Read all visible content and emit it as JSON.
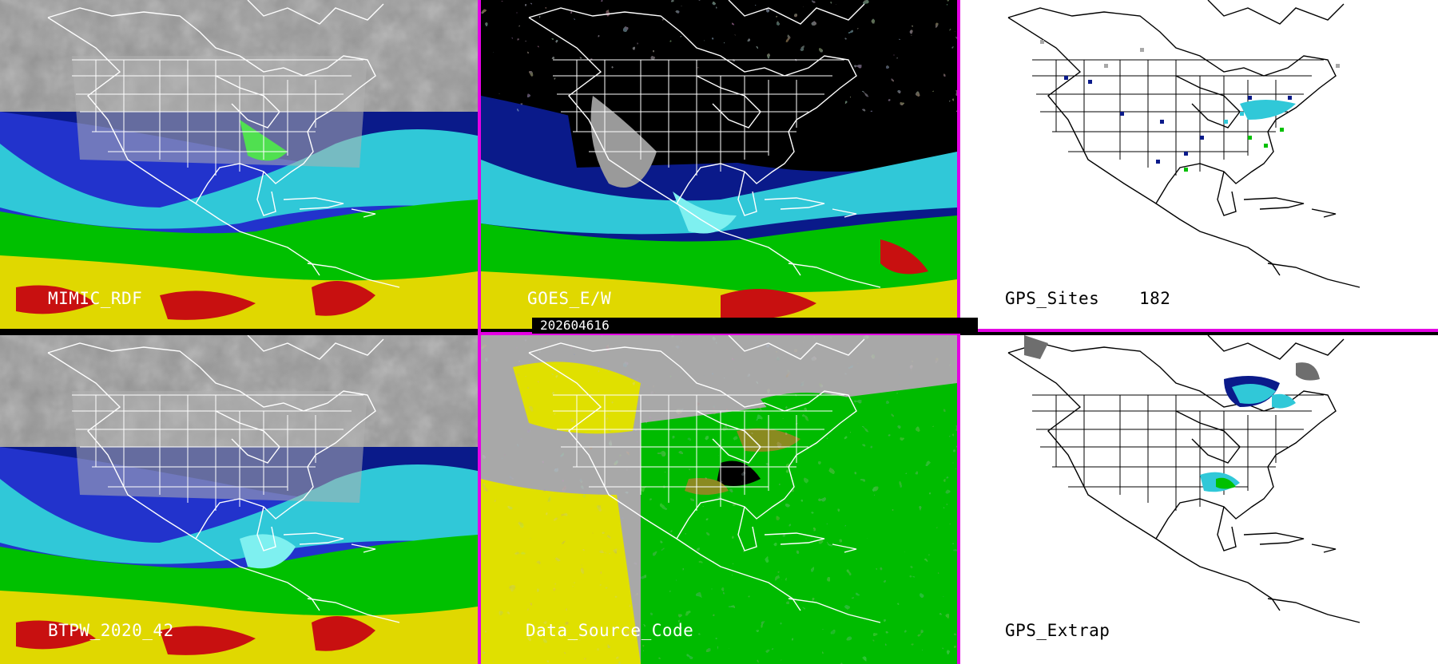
{
  "colors": {
    "divider": "#e400e4",
    "tpw_scale": [
      "#6e6e6e",
      "#c8c8c8",
      "#0a1a8a",
      "#2233cc",
      "#30c8d8",
      "#7ef0f0",
      "#00c000",
      "#50e050",
      "#e0d800",
      "#f0f000",
      "#c81010",
      "#a00000"
    ],
    "source_code": {
      "background": "#a8a8a8",
      "gps": "#00bb00",
      "leo": "#e0e000",
      "mixed": "#8a8a20",
      "missing": "#000000"
    }
  },
  "panels": {
    "mimic": {
      "label": "MIMIC_RDF",
      "style": "tpw"
    },
    "goes": {
      "label": "GOES_E/W",
      "style": "tpw-goes"
    },
    "gps_sites": {
      "label": "GPS_Sites",
      "count": "182",
      "style": "white"
    },
    "btpw": {
      "label": "BTPW_2020_42",
      "style": "tpw-blend"
    },
    "source": {
      "label": "Data_Source_Code",
      "style": "source"
    },
    "gps_extrap": {
      "label": "GPS_Extrap",
      "style": "white"
    }
  },
  "timestamp": "202604616"
}
